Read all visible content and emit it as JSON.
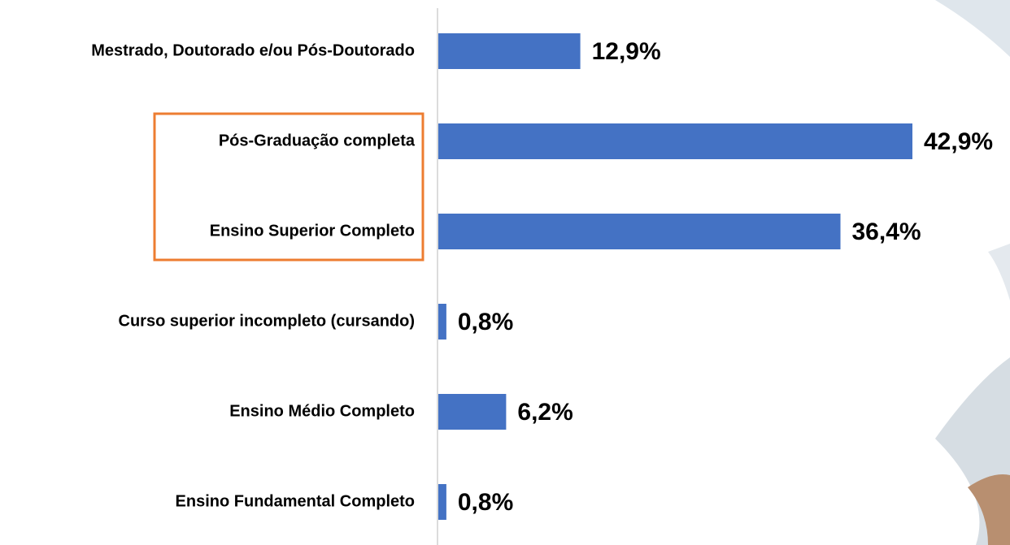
{
  "chart_data": {
    "type": "bar",
    "orientation": "horizontal",
    "categories": [
      "Mestrado, Doutorado e/ou Pós-Doutorado",
      "Pós-Graduação completa",
      "Ensino Superior Completo",
      "Curso superior incompleto (cursando)",
      "Ensino Médio Completo",
      "Ensino Fundamental Completo"
    ],
    "values": [
      12.9,
      42.9,
      36.4,
      0.8,
      6.2,
      0.8
    ],
    "value_labels": [
      "12,9%",
      "42,9%",
      "36,4%",
      "0,8%",
      "6,2%",
      "0,8%"
    ],
    "color": "#4472c4"
  }
}
